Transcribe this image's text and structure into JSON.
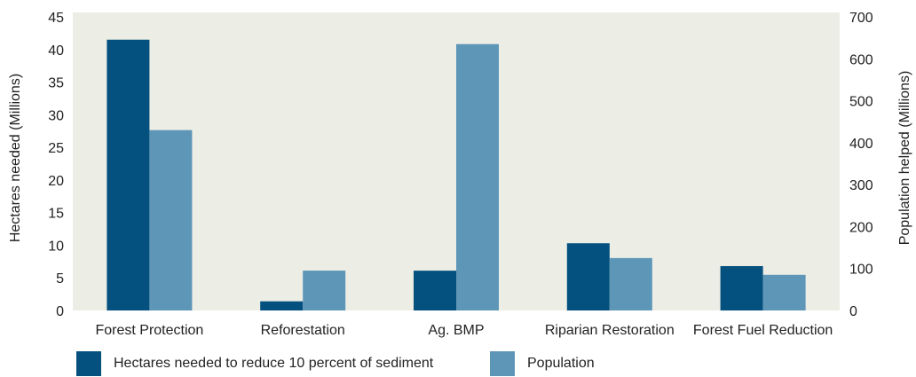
{
  "chart_data": {
    "type": "bar",
    "categories": [
      "Forest Protection",
      "Reforestation",
      "Ag. BMP",
      "Riparian Restoration",
      "Forest Fuel Reduction"
    ],
    "series": [
      {
        "name": "Hectares needed to reduce 10 percent of sediment",
        "axis": "left",
        "color": "#04517f",
        "values": [
          41.5,
          1.4,
          6.1,
          10.3,
          6.8
        ]
      },
      {
        "name": "Population",
        "axis": "right",
        "color": "#5e96b8",
        "values": [
          430,
          95,
          635,
          125,
          85
        ]
      }
    ],
    "ylabel": "Hectares needed (Millions)",
    "y2label": "Population helped (Millions)",
    "ylim": [
      0,
      45
    ],
    "y2lim": [
      0,
      700
    ],
    "yticks": [
      "0",
      "5",
      "10",
      "15",
      "20",
      "25",
      "30",
      "35",
      "40",
      "45"
    ],
    "y2ticks": [
      "0",
      "100",
      "200",
      "300",
      "400",
      "500",
      "600",
      "700"
    ],
    "grid": false,
    "legend_position": "bottom",
    "plot_background": "#ecede5"
  }
}
